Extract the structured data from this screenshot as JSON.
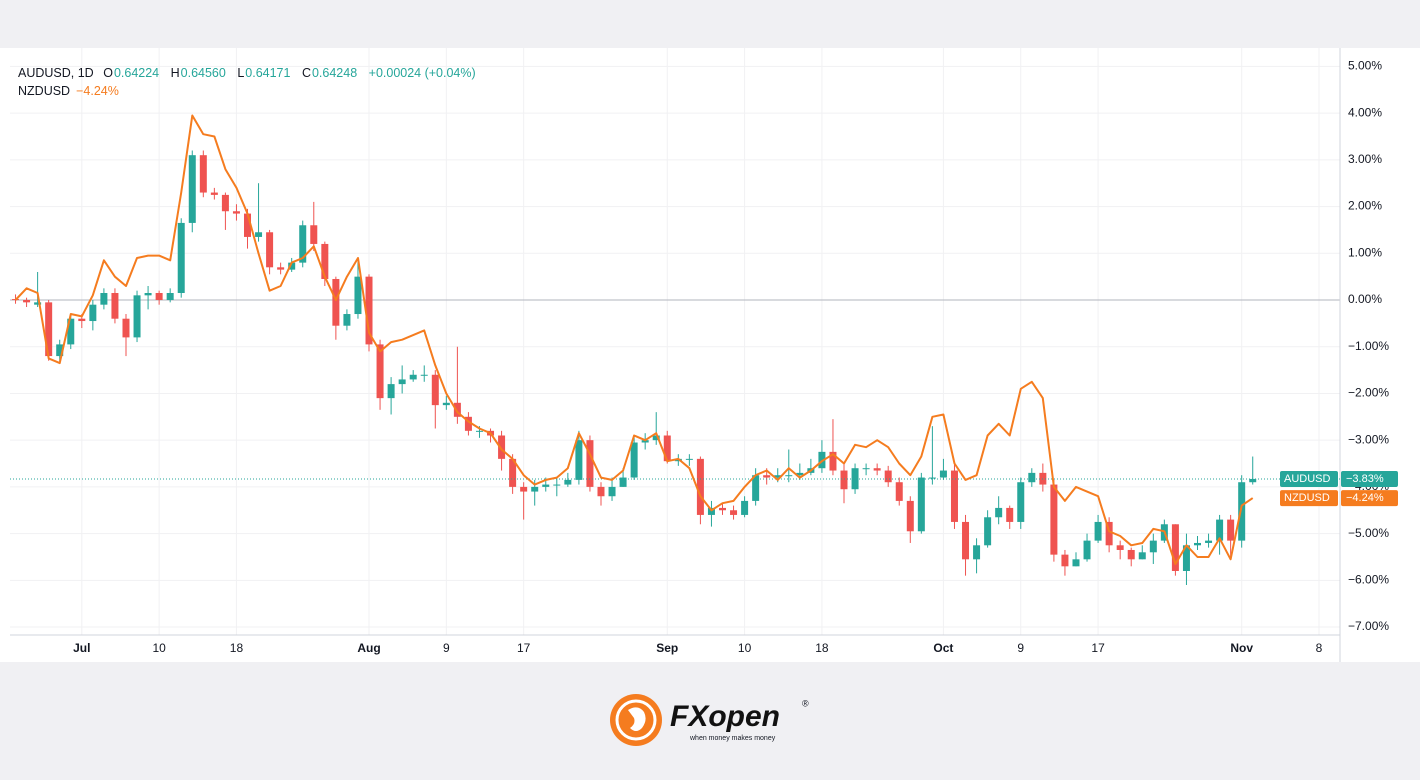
{
  "chart_data": {
    "type": "candlestick",
    "header": {
      "symbol": "AUDUSD, 1D",
      "o_label": "O",
      "o": "0.64224",
      "h_label": "H",
      "h": "0.64560",
      "l_label": "L",
      "l": "0.64171",
      "c_label": "C",
      "c": "0.64248",
      "change": "+0.00024 (+0.04%)"
    },
    "candles": {
      "name": "AUDUSD",
      "up_color": "#26a69a",
      "down_color": "#ef5350",
      "open": [
        0.02,
        0.0,
        -0.1,
        -0.05,
        -1.2,
        -0.95,
        -0.4,
        -0.45,
        -0.1,
        0.15,
        -0.4,
        -0.8,
        0.1,
        0.15,
        0.0,
        0.15,
        1.65,
        3.1,
        2.3,
        2.25,
        1.9,
        1.85,
        1.35,
        1.45,
        0.7,
        0.65,
        0.8,
        1.6,
        1.2,
        0.45,
        -0.55,
        -0.3,
        0.5,
        -0.95,
        -2.1,
        -1.8,
        -1.7,
        -1.6,
        -1.6,
        -2.25,
        -2.2,
        -2.5,
        -2.8,
        -2.8,
        -2.9,
        -3.4,
        -4.0,
        -4.1,
        -4.0,
        -3.95,
        -3.95,
        -3.85,
        -3.0,
        -4.0,
        -4.2,
        -4.0,
        -3.8,
        -3.05,
        -3.0,
        -2.9,
        -3.45,
        -3.4,
        -3.4,
        -4.6,
        -4.45,
        -4.5,
        -4.6,
        -4.3,
        -3.75,
        -3.8,
        -3.75,
        -3.75,
        -3.7,
        -3.6,
        -3.25,
        -3.65,
        -4.05,
        -3.6,
        -3.6,
        -3.65,
        -3.9,
        -4.3,
        -4.95,
        -3.8,
        -3.8,
        -3.65,
        -4.75,
        -5.55,
        -5.25,
        -4.65,
        -4.45,
        -4.75,
        -3.9,
        -3.7,
        -3.95,
        -5.45,
        -5.7,
        -5.55,
        -5.15,
        -4.75,
        -5.25,
        -5.35,
        -5.55,
        -5.4,
        -5.15,
        -4.8,
        -5.8,
        -5.25,
        -5.2,
        -5.15,
        -4.7,
        -5.15,
        -3.9
      ],
      "high": [
        0.12,
        0.05,
        0.6,
        0.0,
        -0.85,
        -0.3,
        -0.3,
        0.0,
        0.25,
        0.25,
        -0.3,
        0.2,
        0.3,
        0.2,
        0.25,
        1.75,
        3.2,
        3.2,
        2.4,
        2.3,
        2.05,
        1.95,
        2.5,
        1.5,
        0.8,
        0.9,
        1.7,
        2.1,
        1.25,
        0.5,
        -0.2,
        0.9,
        0.55,
        -0.85,
        -1.65,
        -1.4,
        -1.5,
        -1.4,
        -1.5,
        -2.05,
        -1.0,
        -2.4,
        -2.7,
        -2.75,
        -2.8,
        -3.3,
        -3.9,
        -3.85,
        -3.8,
        -3.8,
        -3.7,
        -2.8,
        -2.9,
        -3.9,
        -3.8,
        -3.6,
        -2.9,
        -2.85,
        -2.4,
        -2.8,
        -3.3,
        -3.3,
        -3.35,
        -4.3,
        -4.35,
        -4.4,
        -4.2,
        -3.6,
        -3.6,
        -3.6,
        -3.2,
        -3.5,
        -3.4,
        -3.0,
        -2.55,
        -3.5,
        -3.5,
        -3.5,
        -3.5,
        -3.55,
        -3.8,
        -4.2,
        -3.7,
        -2.7,
        -3.4,
        -3.5,
        -4.6,
        -5.1,
        -4.5,
        -4.2,
        -4.4,
        -3.8,
        -3.6,
        -3.5,
        -3.85,
        -5.35,
        -5.4,
        -5.0,
        -4.6,
        -4.65,
        -5.15,
        -5.3,
        -5.25,
        -5.0,
        -4.7,
        -4.8,
        -5.0,
        -5.05,
        -5.0,
        -4.6,
        -4.6,
        -3.75,
        -3.35
      ],
      "low": [
        -0.08,
        -0.15,
        -0.15,
        -1.3,
        -1.3,
        -1.05,
        -0.6,
        -0.65,
        -0.2,
        -0.5,
        -1.2,
        -0.9,
        -0.2,
        -0.1,
        -0.05,
        0.05,
        1.45,
        2.2,
        2.15,
        1.5,
        1.7,
        1.1,
        1.25,
        0.55,
        0.55,
        0.6,
        0.7,
        1.05,
        0.3,
        -0.85,
        -0.65,
        -0.4,
        -1.1,
        -2.35,
        -2.45,
        -2.0,
        -1.75,
        -1.75,
        -2.75,
        -2.35,
        -2.65,
        -2.9,
        -2.95,
        -3.05,
        -3.65,
        -4.15,
        -4.7,
        -4.4,
        -4.1,
        -4.2,
        -4.0,
        -3.95,
        -4.1,
        -4.4,
        -4.3,
        -4.0,
        -3.85,
        -3.2,
        -3.1,
        -3.5,
        -3.55,
        -3.55,
        -4.8,
        -4.85,
        -4.6,
        -4.7,
        -4.65,
        -4.4,
        -3.95,
        -3.9,
        -3.9,
        -3.85,
        -3.75,
        -3.7,
        -3.75,
        -4.35,
        -4.15,
        -3.75,
        -3.75,
        -4.0,
        -4.4,
        -5.2,
        -5.0,
        -3.95,
        -3.85,
        -4.9,
        -5.9,
        -5.85,
        -5.3,
        -4.8,
        -4.9,
        -4.9,
        -4.0,
        -4.1,
        -5.6,
        -5.9,
        -5.7,
        -5.6,
        -5.2,
        -5.4,
        -5.55,
        -5.7,
        -5.55,
        -5.65,
        -5.2,
        -5.9,
        -6.1,
        -5.35,
        -5.3,
        -5.45,
        -5.55,
        -5.3,
        -3.95
      ],
      "close": [
        0.0,
        -0.05,
        -0.05,
        -1.2,
        -0.95,
        -0.4,
        -0.45,
        -0.1,
        0.15,
        -0.4,
        -0.8,
        0.1,
        0.15,
        0.0,
        0.15,
        1.65,
        3.1,
        2.3,
        2.25,
        1.9,
        1.85,
        1.35,
        1.45,
        0.7,
        0.65,
        0.8,
        1.6,
        1.2,
        0.45,
        -0.55,
        -0.3,
        0.5,
        -0.95,
        -2.1,
        -1.8,
        -1.7,
        -1.6,
        -1.6,
        -2.25,
        -2.2,
        -2.5,
        -2.8,
        -2.8,
        -2.9,
        -3.4,
        -4.0,
        -4.1,
        -4.0,
        -3.95,
        -3.95,
        -3.85,
        -3.0,
        -4.0,
        -4.2,
        -4.0,
        -3.8,
        -3.05,
        -3.0,
        -2.9,
        -3.45,
        -3.4,
        -3.4,
        -4.6,
        -4.45,
        -4.5,
        -4.6,
        -4.3,
        -3.75,
        -3.8,
        -3.75,
        -3.75,
        -3.7,
        -3.6,
        -3.25,
        -3.65,
        -4.05,
        -3.6,
        -3.6,
        -3.65,
        -3.9,
        -4.3,
        -4.95,
        -3.8,
        -3.8,
        -3.65,
        -4.75,
        -5.55,
        -5.25,
        -4.65,
        -4.45,
        -4.75,
        -3.9,
        -3.7,
        -3.95,
        -5.45,
        -5.7,
        -5.55,
        -5.15,
        -4.75,
        -5.25,
        -5.35,
        -5.55,
        -5.4,
        -5.15,
        -4.8,
        -5.8,
        -5.25,
        -5.2,
        -5.15,
        -4.7,
        -5.15,
        -3.9,
        -3.83
      ],
      "last_label": "−3.83%"
    },
    "series": [
      {
        "name": "NZDUSD",
        "color": "#f57c1f",
        "last_label": "−4.24%",
        "values": [
          0.0,
          0.25,
          0.15,
          -1.25,
          -1.35,
          -0.3,
          -0.35,
          0.1,
          0.85,
          0.5,
          0.3,
          0.9,
          0.95,
          0.95,
          0.85,
          2.3,
          3.95,
          3.55,
          3.5,
          2.8,
          2.4,
          1.85,
          1.0,
          0.2,
          0.3,
          0.8,
          0.9,
          1.15,
          0.5,
          0.0,
          0.5,
          0.9,
          -0.7,
          -1.1,
          -0.9,
          -0.85,
          -0.75,
          -0.65,
          -1.4,
          -2.0,
          -2.4,
          -2.6,
          -2.75,
          -2.85,
          -3.2,
          -3.4,
          -3.75,
          -3.95,
          -3.85,
          -3.8,
          -3.6,
          -2.85,
          -3.3,
          -3.8,
          -3.85,
          -3.65,
          -2.9,
          -3.0,
          -2.85,
          -3.45,
          -3.4,
          -3.6,
          -4.2,
          -4.5,
          -4.35,
          -4.3,
          -4.0,
          -3.75,
          -3.65,
          -3.85,
          -3.6,
          -3.8,
          -3.65,
          -3.45,
          -3.3,
          -3.5,
          -3.1,
          -3.15,
          -3.0,
          -3.15,
          -3.5,
          -3.75,
          -3.35,
          -2.5,
          -2.45,
          -3.5,
          -3.85,
          -3.75,
          -2.9,
          -2.65,
          -2.9,
          -1.9,
          -1.75,
          -2.1,
          -4.0,
          -4.3,
          -4.0,
          -4.1,
          -4.2,
          -4.95,
          -5.05,
          -5.25,
          -5.2,
          -4.9,
          -4.95,
          -5.65,
          -5.25,
          -5.5,
          -5.5,
          -5.1,
          -5.55,
          -4.4,
          -4.24
        ]
      }
    ],
    "xlim": [
      -0.5,
      119.9
    ],
    "xticks": [
      {
        "value": 6,
        "label": "Jul"
      },
      {
        "value": 13,
        "label": "10"
      },
      {
        "value": 20,
        "label": "18"
      },
      {
        "value": 32,
        "label": "Aug"
      },
      {
        "value": 39,
        "label": "9"
      },
      {
        "value": 46,
        "label": "17"
      },
      {
        "value": 59,
        "label": "Sep"
      },
      {
        "value": 66,
        "label": "10"
      },
      {
        "value": 73,
        "label": "18"
      },
      {
        "value": 84,
        "label": "Oct"
      },
      {
        "value": 91,
        "label": "9"
      },
      {
        "value": 98,
        "label": "17"
      },
      {
        "value": 111,
        "label": "Nov"
      },
      {
        "value": 118,
        "label": "8"
      }
    ],
    "ylim": [
      -7.17,
      5.18
    ],
    "yticks": [
      {
        "value": 5,
        "label": "5.00%"
      },
      {
        "value": 4,
        "label": "4.00%"
      },
      {
        "value": 3,
        "label": "3.00%"
      },
      {
        "value": 2,
        "label": "2.00%"
      },
      {
        "value": 1,
        "label": "1.00%"
      },
      {
        "value": 0,
        "label": "0.00%"
      },
      {
        "value": -1,
        "label": "−1.00%"
      },
      {
        "value": -2,
        "label": "−2.00%"
      },
      {
        "value": -3,
        "label": "−3.00%"
      },
      {
        "value": -4,
        "label": "−4.00%"
      },
      {
        "value": -5,
        "label": "−5.00%"
      },
      {
        "value": -6,
        "label": "−6.00%"
      },
      {
        "value": -7,
        "label": "−7.00%"
      }
    ],
    "grid": true,
    "baseline": 0
  },
  "branding": {
    "name_a": "FX",
    "name_b": "open",
    "mark": "®",
    "tagline": "when money makes money"
  }
}
